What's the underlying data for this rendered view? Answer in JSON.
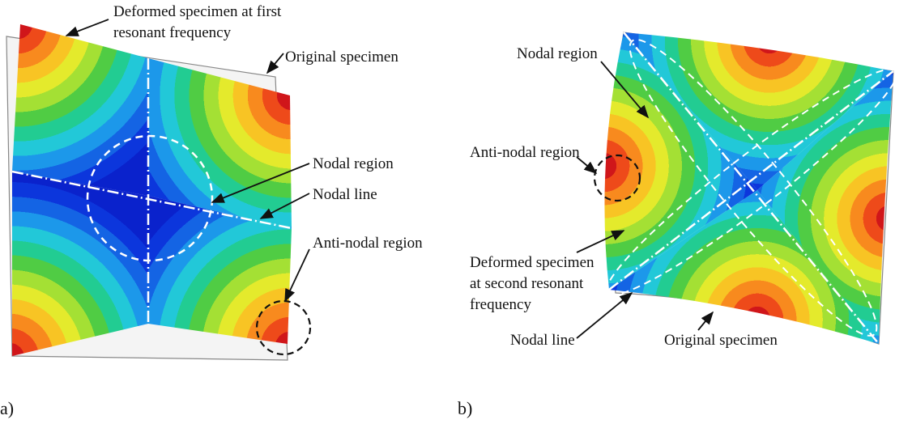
{
  "panel_a": {
    "label": "a)",
    "annotations": {
      "deformed": {
        "lines": [
          "Deformed specimen at first",
          "resonant frequency"
        ]
      },
      "original": {
        "lines": [
          "Original specimen"
        ]
      },
      "nodal_region": {
        "lines": [
          "Nodal region"
        ]
      },
      "nodal_line": {
        "lines": [
          "Nodal line"
        ]
      },
      "anti_nodal": {
        "lines": [
          "Anti-nodal region"
        ]
      }
    }
  },
  "panel_b": {
    "label": "b)",
    "annotations": {
      "nodal_region": {
        "lines": [
          "Nodal region"
        ]
      },
      "anti_nodal": {
        "lines": [
          "Anti-nodal region"
        ]
      },
      "deformed": {
        "lines": [
          "Deformed specimen",
          "at second resonant",
          "frequency"
        ]
      },
      "nodal_line": {
        "lines": [
          "Nodal line"
        ]
      },
      "original": {
        "lines": [
          "Original specimen"
        ]
      }
    }
  }
}
